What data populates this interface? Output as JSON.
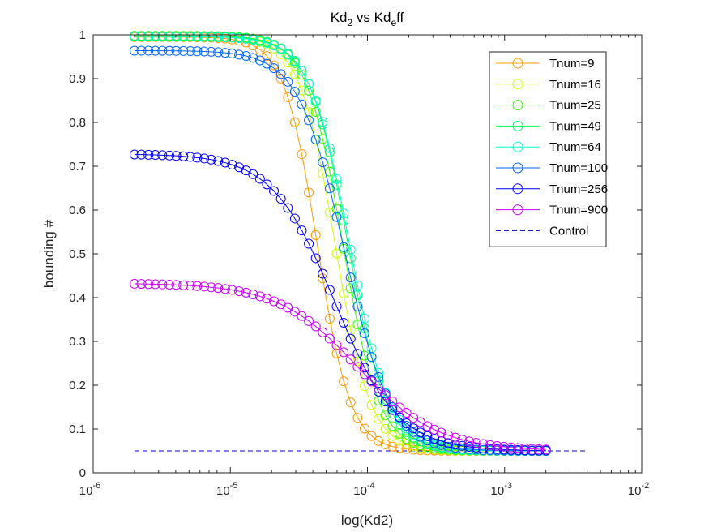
{
  "chart_data": {
    "type": "line",
    "title_main": "Kd",
    "title_sub": "2",
    "title_mid": " vs Kd",
    "title_sub2": "e",
    "title_end": "ff",
    "xlabel": "log(Kd2)",
    "ylabel": "bounding #",
    "x_scale": "log",
    "xlim": [
      1e-06,
      0.01
    ],
    "ylim": [
      0,
      1
    ],
    "x_ticks": [
      {
        "base": "10",
        "exp": "-6",
        "value": 1e-06
      },
      {
        "base": "10",
        "exp": "-5",
        "value": 1e-05
      },
      {
        "base": "10",
        "exp": "-4",
        "value": 0.0001
      },
      {
        "base": "10",
        "exp": "-3",
        "value": 0.001
      },
      {
        "base": "10",
        "exp": "-2",
        "value": 0.01
      }
    ],
    "y_ticks": [
      "0",
      "0.1",
      "0.2",
      "0.3",
      "0.4",
      "0.5",
      "0.6",
      "0.7",
      "0.8",
      "0.9",
      "1"
    ],
    "grid": false,
    "legend_position": "top-right",
    "x_range": [
      2e-06,
      0.002
    ],
    "n_points": 60,
    "baseline": 0.05,
    "series": [
      {
        "name": "Tnum=9",
        "color": "#ff9900",
        "top": 0.995,
        "mid": 4.3e-05,
        "hill": 3.6
      },
      {
        "name": "Tnum=16",
        "color": "#ccff00",
        "top": 0.997,
        "mid": 5.8e-05,
        "hill": 3.4
      },
      {
        "name": "Tnum=25",
        "color": "#33ff00",
        "top": 0.998,
        "mid": 6.6e-05,
        "hill": 3.3
      },
      {
        "name": "Tnum=49",
        "color": "#00ff66",
        "top": 0.997,
        "mid": 7.2e-05,
        "hill": 3.1
      },
      {
        "name": "Tnum=64",
        "color": "#00ffcc",
        "top": 0.996,
        "mid": 7.4e-05,
        "hill": 3.0
      },
      {
        "name": "Tnum=100",
        "color": "#0066ff",
        "top": 0.964,
        "mid": 6.8e-05,
        "hill": 2.6
      },
      {
        "name": "Tnum=256",
        "color": "#0000ff",
        "top": 0.728,
        "mid": 5.8e-05,
        "hill": 1.9
      },
      {
        "name": "Tnum=900",
        "color": "#cc00ff",
        "top": 0.433,
        "mid": 8.5e-05,
        "hill": 1.5
      }
    ],
    "control": {
      "name": "Control",
      "value": 0.05,
      "x": [
        2e-06,
        0.004
      ],
      "color": "#0000cc",
      "style": "dashed"
    }
  }
}
